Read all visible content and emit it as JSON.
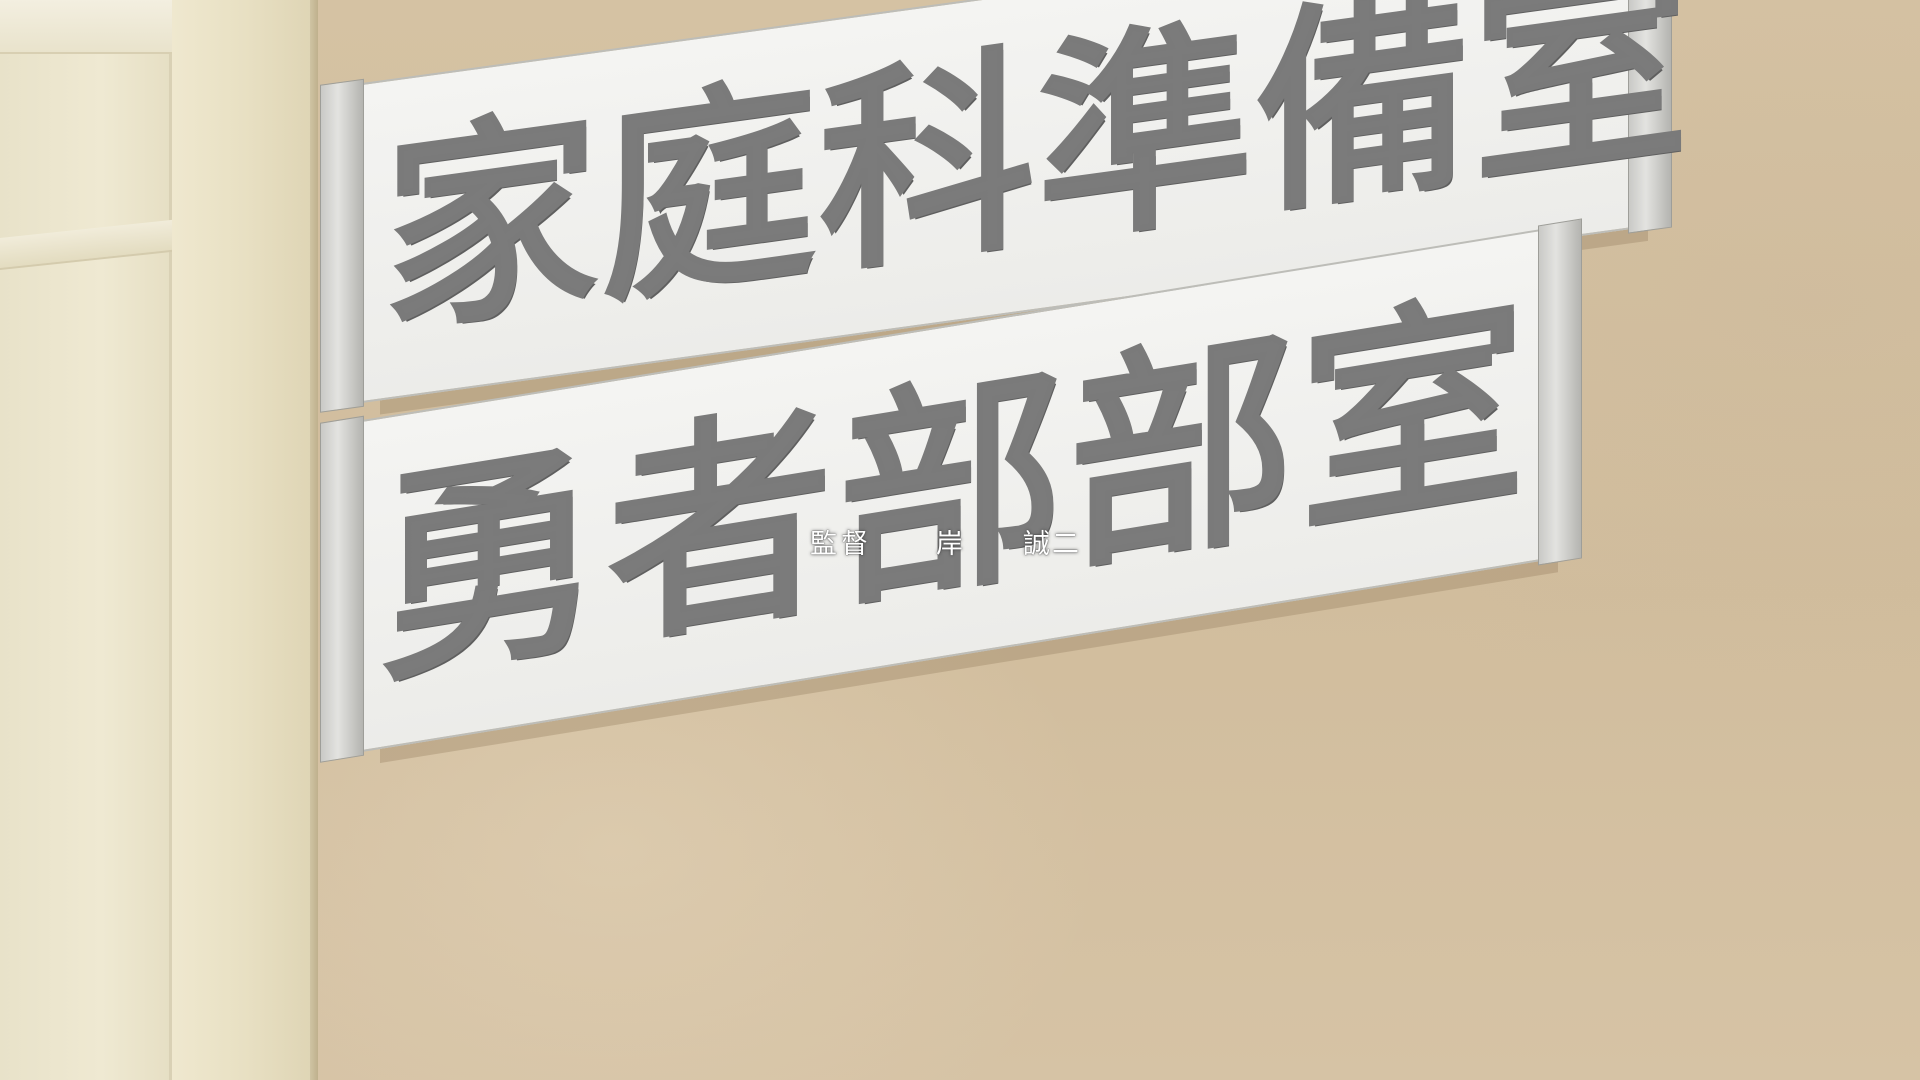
{
  "signs": {
    "top": [
      "家",
      "庭",
      "科",
      "準",
      "備",
      "室"
    ],
    "bottom": [
      "勇",
      "者",
      "部",
      "部",
      "室"
    ]
  },
  "credit": {
    "role": "監督",
    "family_name": "岸",
    "given_name": "誠二"
  }
}
